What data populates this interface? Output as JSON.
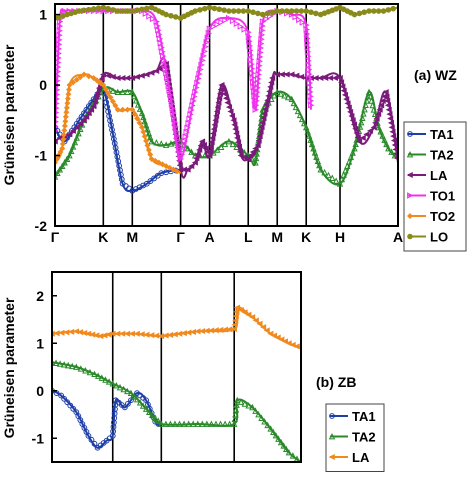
{
  "chart_data": [
    {
      "type": "line",
      "panel_label": "(a) WZ",
      "ylabel": "Grüneisen parameter",
      "ylim": [
        -2,
        1.15
      ],
      "yticks": [
        -2,
        -1,
        0,
        1
      ],
      "path_x": [
        0,
        1,
        1.6,
        2.6,
        3.2,
        4.0,
        4.6,
        5.2,
        5.9,
        7.1
      ],
      "path_labels": [
        "Γ",
        "K",
        "M",
        "Γ",
        "A",
        "L",
        "M",
        "K",
        "H",
        "A"
      ],
      "legend": {
        "placement": "right",
        "entries": [
          "TA1",
          "TA2",
          "LA",
          "TO1",
          "TO2",
          "LO"
        ]
      },
      "colors": {
        "TA1": "#1f3fa8",
        "TA2": "#2a8a2a",
        "LA": "#7a1a7a",
        "TO1": "#ee33ee",
        "TO2": "#f08a1e",
        "LO": "#8a8a1a"
      },
      "series": [
        {
          "name": "TA1",
          "x": [
            0,
            0.2,
            0.5,
            0.8,
            1.0,
            1.2,
            1.4,
            1.6,
            1.9,
            2.2,
            2.6
          ],
          "y": [
            -0.6,
            -0.8,
            -0.5,
            -0.2,
            -0.05,
            -0.7,
            -1.4,
            -1.5,
            -1.4,
            -1.25,
            -1.2
          ]
        },
        {
          "name": "TA2",
          "x": [
            0,
            0.3,
            0.6,
            1.0,
            1.3,
            1.6,
            1.8,
            2.0,
            2.3,
            2.6,
            2.9,
            3.2,
            3.6,
            4.0,
            4.15,
            4.3,
            4.6,
            4.9,
            5.2,
            5.5,
            5.9,
            6.2,
            6.5,
            6.7,
            6.9,
            7.1
          ],
          "y": [
            -1.3,
            -1.0,
            -0.5,
            -0.05,
            -0.1,
            -0.1,
            -0.4,
            -0.8,
            -0.85,
            -0.8,
            -1.0,
            -1.0,
            -0.8,
            -1.0,
            -1.1,
            -0.35,
            -0.1,
            -0.2,
            -0.6,
            -1.2,
            -1.4,
            -0.9,
            -0.1,
            -0.6,
            -0.9,
            -1.05
          ]
        },
        {
          "name": "LA",
          "x": [
            0,
            0.1,
            0.3,
            0.6,
            0.8,
            1.0,
            1.3,
            1.6,
            1.9,
            2.1,
            2.3,
            2.6,
            2.75,
            2.9,
            3.05,
            3.2,
            3.45,
            3.7,
            3.85,
            4.0,
            4.2,
            4.5,
            4.6,
            4.9,
            5.2,
            5.5,
            5.9,
            6.3,
            6.6,
            6.85,
            7.1
          ],
          "y": [
            -0.8,
            -0.75,
            -0.7,
            -0.5,
            -0.3,
            0.15,
            0.1,
            0.1,
            0.15,
            0.2,
            0.3,
            -1.2,
            -1.2,
            -1.1,
            -0.8,
            -1.0,
            0.0,
            -0.5,
            -1.0,
            -1.05,
            -0.85,
            0.1,
            0.15,
            0.15,
            0.1,
            0.1,
            0.1,
            -0.8,
            -0.6,
            -0.1,
            -1.1
          ]
        },
        {
          "name": "TO1",
          "x": [
            0,
            0.1,
            0.2,
            0.5,
            0.8,
            1.0,
            1.3,
            1.6,
            1.8,
            2.1,
            2.4,
            2.6,
            2.9,
            3.2,
            3.6,
            4.0,
            4.15,
            4.3,
            4.6,
            4.9,
            5.2,
            5.3
          ],
          "y": [
            -0.65,
            0.9,
            1.05,
            1.05,
            1.05,
            1.05,
            1.05,
            1.05,
            1.05,
            0.9,
            -0.2,
            -1.05,
            -0.1,
            0.8,
            0.95,
            0.75,
            -0.35,
            0.9,
            1.05,
            1.0,
            0.85,
            -0.35
          ]
        },
        {
          "name": "TO2",
          "x": [
            0,
            0.15,
            0.3,
            0.6,
            0.8,
            1.0,
            1.3,
            1.6,
            1.8,
            2.0,
            2.3,
            2.6
          ],
          "y": [
            -1.1,
            -0.9,
            0.0,
            0.15,
            0.1,
            0.0,
            -0.35,
            -0.35,
            -0.6,
            -1.05,
            -1.15,
            -1.25
          ]
        },
        {
          "name": "LO",
          "x": [
            0,
            0.5,
            1.0,
            1.3,
            1.6,
            2.0,
            2.3,
            2.6,
            2.9,
            3.2,
            3.6,
            4.0,
            4.3,
            4.6,
            5.2,
            5.5,
            5.9,
            6.2,
            6.5,
            6.8,
            7.1
          ],
          "y": [
            0.95,
            1.05,
            1.1,
            1.05,
            1.05,
            1.1,
            1.0,
            0.95,
            1.05,
            1.1,
            1.05,
            1.05,
            1.0,
            1.05,
            1.05,
            1.0,
            1.1,
            1.0,
            1.05,
            1.05,
            1.1
          ]
        }
      ]
    },
    {
      "type": "line",
      "panel_label": "(b) ZB",
      "ylabel": "Grüneisen parameter",
      "ylim": [
        -1.5,
        2.5
      ],
      "yticks": [
        -1,
        0,
        1,
        2
      ],
      "path_x": [
        0,
        1,
        1.8,
        3.0,
        4.1
      ],
      "path_labels": [
        "",
        "",
        "",
        "",
        ""
      ],
      "legend": {
        "placement": "right",
        "entries": [
          "TA1",
          "TA2",
          "LA"
        ]
      },
      "colors": {
        "TA1": "#1f3fa8",
        "TA2": "#2a8a2a",
        "LA": "#f08a1e"
      },
      "series": [
        {
          "name": "TA1",
          "x": [
            0,
            0.15,
            0.4,
            0.6,
            0.75,
            0.9,
            1.0,
            1.05,
            1.2,
            1.4,
            1.55,
            1.7,
            1.8
          ],
          "y": [
            0.0,
            -0.1,
            -0.45,
            -0.95,
            -1.2,
            -1.05,
            -0.95,
            -0.2,
            -0.35,
            -0.05,
            -0.2,
            -0.65,
            -0.75
          ]
        },
        {
          "name": "TA2",
          "x": [
            0,
            0.4,
            0.7,
            1.0,
            1.3,
            1.6,
            1.8,
            2.4,
            3.0,
            3.05,
            3.3,
            3.6,
            3.9,
            4.1
          ],
          "y": [
            0.6,
            0.5,
            0.35,
            0.15,
            -0.05,
            -0.45,
            -0.7,
            -0.7,
            -0.7,
            -0.2,
            -0.35,
            -0.8,
            -1.3,
            -1.5
          ]
        },
        {
          "name": "LA",
          "x": [
            0,
            0.4,
            0.8,
            1.0,
            1.4,
            1.8,
            2.4,
            3.0,
            3.05,
            3.3,
            3.6,
            3.9,
            4.1
          ],
          "y": [
            1.2,
            1.25,
            1.15,
            1.2,
            1.2,
            1.15,
            1.25,
            1.3,
            1.75,
            1.55,
            1.2,
            1.0,
            0.9
          ]
        }
      ]
    }
  ]
}
